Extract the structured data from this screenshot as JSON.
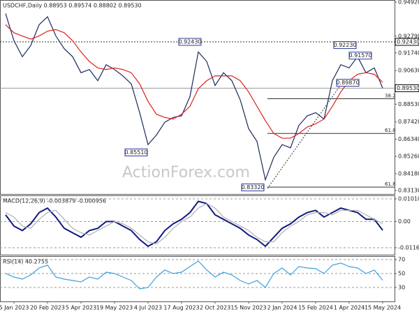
{
  "chart_data": [
    {
      "type": "line",
      "title": "USDCHF,Daily  0.88953 0.89574 0.88802 0.89530",
      "watermark": "ActionForex.com",
      "categories": [
        null,
        "5 Jan 2023",
        null,
        null,
        null,
        "20 Feb 2023",
        null,
        null,
        null,
        "5 Apr 2023",
        null,
        null,
        null,
        "19 May 2023",
        null,
        null,
        null,
        "4 Jul 2023",
        null,
        null,
        null,
        "17 Aug 2023",
        null,
        null,
        null,
        "2 Oct 2023",
        null,
        null,
        null,
        "15 Nov 2023",
        null,
        null,
        null,
        "2 Jan 2024",
        null,
        null,
        null,
        "15 Feb 2024",
        null,
        null,
        null,
        "1 Apr 2024",
        null,
        null,
        null,
        "15 May 2024"
      ],
      "series": [
        {
          "color": "#1c2a60",
          "values": [
            0.942,
            0.925,
            0.915,
            0.922,
            0.935,
            0.94,
            0.928,
            0.92,
            0.915,
            0.905,
            0.907,
            0.9,
            0.91,
            0.907,
            0.903,
            0.898,
            0.88,
            0.86,
            0.866,
            0.874,
            0.877,
            0.878,
            0.89,
            0.918,
            0.912,
            0.897,
            0.905,
            0.9,
            0.888,
            0.87,
            0.862,
            0.838,
            0.852,
            0.86,
            0.858,
            0.872,
            0.878,
            0.88,
            0.876,
            0.9,
            0.91,
            0.908,
            0.915,
            0.905,
            0.908,
            0.8953
          ]
        },
        {
          "color": "#e02020",
          "values": [
            0.935,
            0.93,
            0.928,
            0.926,
            0.928,
            0.931,
            0.932,
            0.93,
            0.925,
            0.918,
            0.912,
            0.908,
            0.907,
            0.908,
            0.907,
            0.905,
            0.898,
            0.887,
            0.879,
            0.877,
            0.876,
            0.879,
            0.884,
            0.895,
            0.9,
            0.903,
            0.903,
            0.903,
            0.9,
            0.893,
            0.884,
            0.875,
            0.867,
            0.864,
            0.864,
            0.867,
            0.871,
            0.873,
            0.876,
            0.884,
            0.893,
            0.9,
            0.904,
            0.905,
            0.904,
            0.899
          ]
        }
      ],
      "ylim": [
        0.8291,
        0.9505
      ],
      "yticks": [
        {
          "value": 0.9492,
          "label": "0.94920"
        },
        {
          "value": 0.9279,
          "label": "0.92790"
        },
        {
          "value": 0.9174,
          "label": "0.91740"
        },
        {
          "value": 0.9063,
          "label": "0.90630"
        },
        {
          "value": 0.8853,
          "label": "0.88530"
        },
        {
          "value": 0.8742,
          "label": "0.87420"
        },
        {
          "value": 0.8634,
          "label": "0.86340"
        },
        {
          "value": 0.8526,
          "label": "0.85260"
        },
        {
          "value": 0.8418,
          "label": "0.84180"
        },
        {
          "value": 0.8313,
          "label": "0.83130"
        }
      ],
      "markers": [
        {
          "value": 0.9243,
          "label": "0.92430"
        },
        {
          "value": 0.8953,
          "label": "0.89530"
        }
      ],
      "annotations": [
        {
          "value": 0.9243,
          "label": "0.92430"
        },
        {
          "value": 0.8551,
          "label": "0.85510"
        },
        {
          "value": 0.8332,
          "label": "0.83320"
        },
        {
          "value": 0.9223,
          "label": "0.92230"
        },
        {
          "value": 0.9157,
          "label": "0.91570"
        },
        {
          "value": 0.8987,
          "label": "0.89870"
        }
      ],
      "levels": [
        {
          "value": 0.8887,
          "label": "38.2"
        },
        {
          "value": 0.867,
          "label": "61.8"
        },
        {
          "value": 0.8334,
          "label": "61.8"
        }
      ]
    },
    {
      "type": "line",
      "title": "MACD(12,26,9) -0.003879 -0.000956",
      "series": [
        {
          "color": "#101a80",
          "values": [
            0.003,
            -0.002,
            -0.004,
            -0.001,
            0.004,
            0.006,
            0.002,
            -0.003,
            -0.005,
            -0.007,
            -0.004,
            -0.003,
            0.0,
            0.0,
            -0.002,
            -0.004,
            -0.008,
            -0.011,
            -0.009,
            -0.004,
            -0.001,
            0.001,
            0.004,
            0.009,
            0.008,
            0.003,
            0.001,
            -0.001,
            -0.003,
            -0.006,
            -0.008,
            -0.011,
            -0.007,
            -0.003,
            -0.001,
            0.002,
            0.004,
            0.005,
            0.002,
            0.004,
            0.006,
            0.005,
            0.004,
            0.001,
            0.001,
            -0.003879
          ]
        },
        {
          "color": "#b0b0b0",
          "values": [
            0.004,
            0.002,
            -0.002,
            -0.003,
            0.001,
            0.004,
            0.005,
            0.001,
            -0.003,
            -0.005,
            -0.006,
            -0.004,
            -0.002,
            0.0,
            -0.001,
            -0.003,
            -0.006,
            -0.009,
            -0.01,
            -0.007,
            -0.003,
            0.0,
            0.002,
            0.006,
            0.008,
            0.006,
            0.002,
            0.0,
            -0.002,
            -0.004,
            -0.007,
            -0.009,
            -0.009,
            -0.005,
            -0.002,
            0.0,
            0.003,
            0.004,
            0.004,
            0.003,
            0.005,
            0.005,
            0.005,
            0.003,
            0.001,
            -0.000956
          ]
        }
      ],
      "ylim": [
        -0.01475,
        0.01166
      ],
      "yticks": [
        {
          "value": 0.010101,
          "label": "0.010101"
        },
        {
          "value": 0,
          "label": "0.00"
        },
        {
          "value": -0.011645,
          "label": "-0.011645"
        }
      ]
    },
    {
      "type": "line",
      "title": "RSI(14) 40.2755",
      "series": [
        {
          "color": "#3aa0e0",
          "values": [
            50,
            45,
            42,
            48,
            58,
            62,
            45,
            42,
            40,
            38,
            45,
            42,
            52,
            50,
            45,
            40,
            28,
            30,
            45,
            55,
            50,
            52,
            60,
            68,
            55,
            45,
            52,
            48,
            40,
            35,
            40,
            30,
            50,
            58,
            48,
            60,
            58,
            57,
            50,
            62,
            65,
            60,
            58,
            50,
            55,
            40.2755
          ]
        }
      ],
      "ylim": [
        10,
        75
      ],
      "yticks": [
        70,
        50,
        30
      ]
    }
  ]
}
